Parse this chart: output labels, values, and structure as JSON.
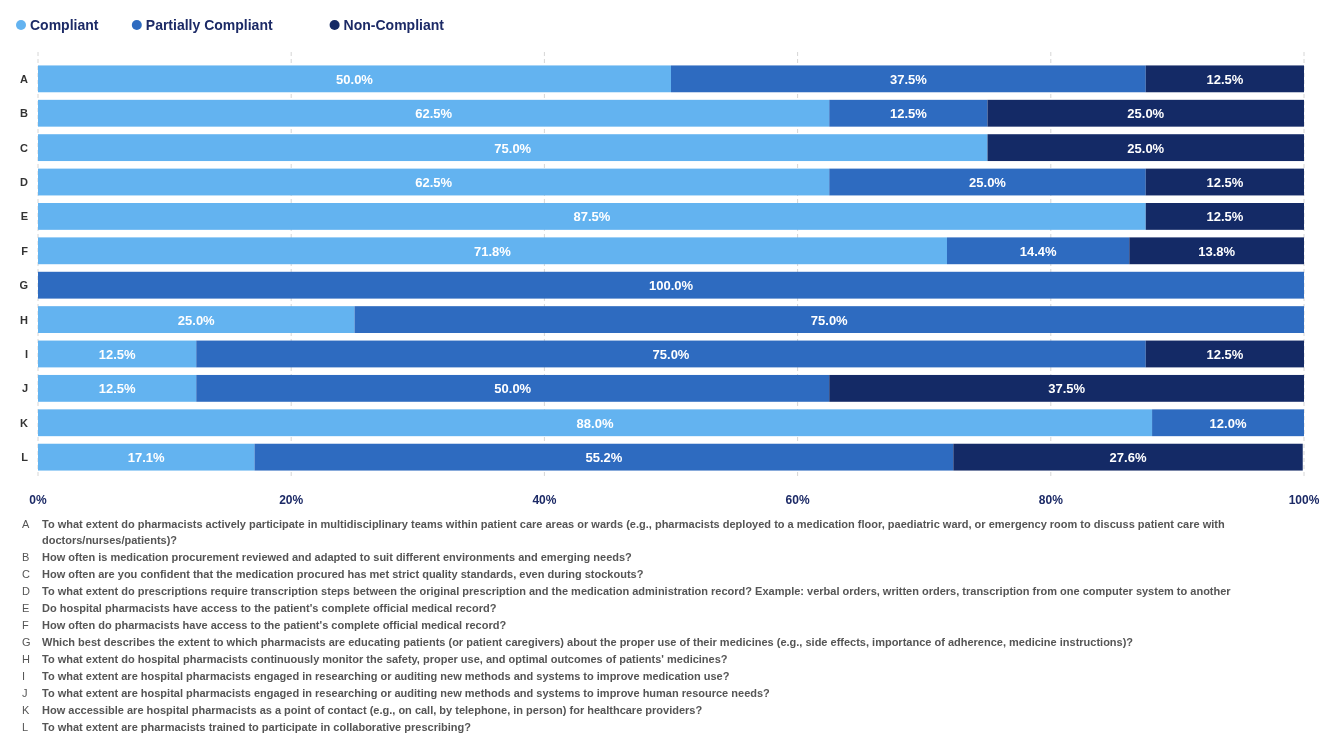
{
  "chart_data": {
    "type": "bar",
    "orientation": "horizontal",
    "stacked": true,
    "categories": [
      "A",
      "B",
      "C",
      "D",
      "E",
      "F",
      "G",
      "H",
      "I",
      "J",
      "K",
      "L"
    ],
    "series": [
      {
        "name": "Compliant",
        "color": "#63b3f0",
        "values": [
          50,
          62.5,
          75,
          62.5,
          87.5,
          71.8,
          null,
          25,
          12.5,
          12.5,
          88,
          17.1
        ],
        "value_labels": [
          "50.0%",
          "62.5%",
          "75.0%",
          "62.5%",
          "87.5%",
          "71.8%",
          null,
          "25.0%",
          "12.5%",
          "12.5%",
          "88.0%",
          "17.1%"
        ]
      },
      {
        "name": "Partially Compliant",
        "color": "#2e6bc0",
        "values": [
          37.5,
          12.5,
          null,
          25,
          null,
          14.4,
          100,
          75,
          75,
          50,
          12,
          55.2
        ],
        "value_labels": [
          "37.5%",
          "12.5%",
          null,
          "25.0%",
          null,
          "14.4%",
          "100.0%",
          "75.0%",
          "75.0%",
          "50.0%",
          "12.0%",
          "55.2%"
        ]
      },
      {
        "name": "Non-Compliant",
        "color": "#142a66",
        "values": [
          12.5,
          25,
          25,
          12.5,
          12.5,
          13.8,
          null,
          null,
          12.5,
          37.5,
          null,
          27.6
        ],
        "value_labels": [
          "12.5%",
          "25.0%",
          "25.0%",
          "12.5%",
          "12.5%",
          "13.8%",
          null,
          null,
          "12.5%",
          "37.5%",
          null,
          "27.6%"
        ]
      }
    ],
    "xlim": [
      0,
      100
    ],
    "xticks": [
      {
        "value": 0,
        "label": "0%"
      },
      {
        "value": 20,
        "label": "20%"
      },
      {
        "value": 40,
        "label": "40%"
      },
      {
        "value": 60,
        "label": "60%"
      },
      {
        "value": 80,
        "label": "80%"
      },
      {
        "value": 100,
        "label": "100%"
      }
    ],
    "grid": "x",
    "legend": "top left",
    "annotations": [
      "A To what extent do pharmacists actively participate in multidisciplinary teams within patient care areas or wards (e.g., pharmacists deployed to a medication floor, paediatric ward, or emergency room to discuss patient care with doctors/nurses/patients)?",
      "B How often is medication procurement reviewed and adapted to suit different environments and emerging needs?",
      "C How often are you confident that the medication procured has met strict quality standards, even during stockouts?",
      "D To what extent do prescriptions require transcription steps between the original prescription and the medication administration record? Example: verbal orders, written orders, transcription from one computer system to another",
      "E Do hospital pharmacists have access to the patient's complete official medical record?",
      "F How often do pharmacists have access to the patient's complete official medical record?",
      "G Which best describes the extent to which pharmacists are educating patients (or patient caregivers) about the proper use of their medicines (e.g., side effects, importance of adherence, medicine instructions)?",
      "H To what extent do hospital pharmacists continuously monitor the safety, proper use, and optimal outcomes of patients' medicines?",
      "I To what extent are hospital pharmacists engaged in researching or auditing new methods and systems to improve medication use?",
      "J To what extent are hospital pharmacists engaged in researching or auditing new methods and systems to improve human resource needs?",
      "K How accessible are hospital pharmacists as a point of contact (e.g., on call, by telephone, in person) for healthcare providers?",
      "L To what extent are pharmacists trained to participate in collaborative prescribing?"
    ]
  }
}
